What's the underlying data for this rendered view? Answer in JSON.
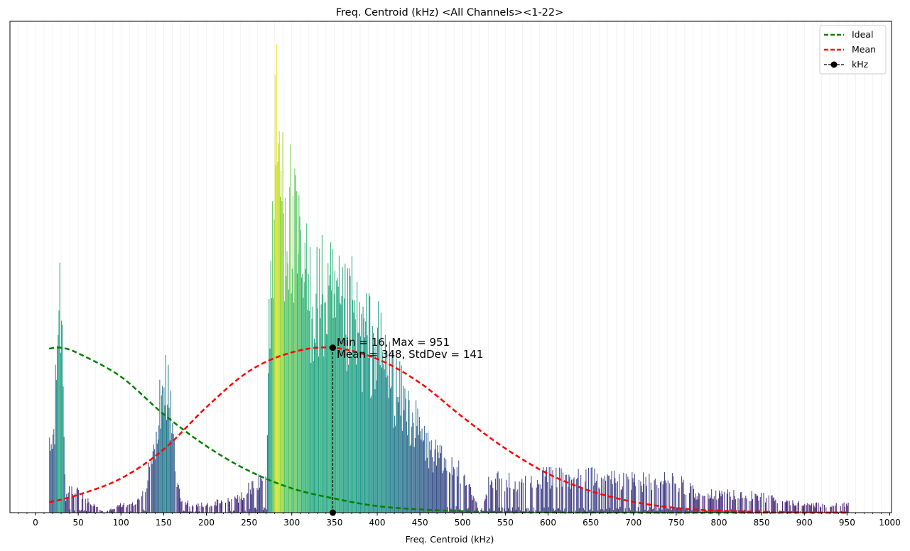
{
  "chart_data": {
    "type": "bar",
    "title": "Freq. Centroid (kHz) <All Channels><1-22>",
    "xlabel": "Freq. Centroid (kHz)",
    "ylabel": "",
    "xlim": [
      -30,
      1000
    ],
    "ylim": [
      0,
      1
    ],
    "x_ticks": [
      0,
      50,
      100,
      150,
      200,
      250,
      300,
      350,
      400,
      450,
      500,
      550,
      600,
      650,
      700,
      750,
      800,
      850,
      900,
      950,
      1000
    ],
    "x_tick_labels": [
      "0",
      "50",
      "100",
      "150",
      "200",
      "250",
      "300",
      "350",
      "400",
      "450",
      "500",
      "550",
      "600",
      "650",
      "700",
      "750",
      "800",
      "850",
      "900",
      "950",
      "1000"
    ],
    "minor_tick_step": 10,
    "grid": "vertical-minor",
    "y_axis_labels_shown": false,
    "colormap": "viridis",
    "histogram_envelope": {
      "x_khz": [
        16,
        22,
        26,
        30,
        35,
        40,
        50,
        60,
        80,
        100,
        110,
        120,
        130,
        140,
        145,
        150,
        155,
        160,
        165,
        170,
        180,
        200,
        220,
        240,
        260,
        270,
        272,
        275,
        280,
        283,
        285,
        290,
        295,
        300,
        310,
        320,
        330,
        340,
        350,
        360,
        370,
        380,
        390,
        400,
        410,
        420,
        430,
        440,
        450,
        460,
        470,
        480,
        490,
        500,
        510,
        520,
        530,
        560,
        600,
        650,
        700,
        750,
        780,
        800,
        850,
        900,
        951
      ],
      "count_fraction": [
        0.15,
        0.21,
        0.53,
        0.55,
        0.04,
        0.06,
        0.05,
        0.03,
        0.0,
        0.02,
        0.02,
        0.03,
        0.09,
        0.16,
        0.27,
        0.33,
        0.3,
        0.2,
        0.09,
        0.04,
        0.02,
        0.02,
        0.03,
        0.04,
        0.08,
        0.08,
        0.42,
        0.55,
        0.9,
        1.0,
        0.88,
        0.82,
        0.8,
        0.7,
        0.62,
        0.56,
        0.55,
        0.54,
        0.52,
        0.48,
        0.5,
        0.45,
        0.44,
        0.42,
        0.38,
        0.32,
        0.28,
        0.24,
        0.2,
        0.16,
        0.14,
        0.12,
        0.11,
        0.1,
        0.05,
        0.0,
        0.08,
        0.08,
        0.09,
        0.09,
        0.08,
        0.08,
        0.04,
        0.05,
        0.04,
        0.02,
        0.02
      ]
    },
    "series": [
      {
        "name": "Ideal",
        "type": "line",
        "style": "dashed",
        "color": "#008000",
        "x": [
          16,
          30,
          50,
          100,
          150,
          200,
          250,
          300,
          350,
          400,
          450,
          500,
          550,
          600,
          650,
          700,
          750,
          800,
          850,
          900,
          951
        ],
        "y": [
          0.35,
          0.352,
          0.34,
          0.29,
          0.21,
          0.142,
          0.089,
          0.052,
          0.03,
          0.014,
          0.007,
          0.003,
          0.001,
          0.0005,
          0.0002,
          0.0001,
          0.0,
          0.0,
          0.0,
          0.0,
          0.0
        ]
      },
      {
        "name": "Mean",
        "type": "line",
        "style": "dashed",
        "color": "#ff0000",
        "x": [
          16,
          50,
          100,
          150,
          200,
          250,
          300,
          348,
          400,
          450,
          500,
          550,
          600,
          650,
          700,
          750,
          800,
          850,
          900,
          951
        ],
        "y": [
          0.022,
          0.038,
          0.073,
          0.135,
          0.225,
          0.302,
          0.342,
          0.352,
          0.328,
          0.277,
          0.204,
          0.137,
          0.083,
          0.046,
          0.023,
          0.01,
          0.004,
          0.002,
          0.0005,
          0.0002
        ]
      },
      {
        "name": "kHz",
        "type": "marker-line",
        "style": "dashed",
        "color": "#000000",
        "x": [
          348,
          348
        ],
        "y": [
          0,
          0.352
        ]
      }
    ],
    "legend": {
      "position": "top-right",
      "entries": [
        "Ideal",
        "Mean",
        "kHz"
      ]
    },
    "annotation": {
      "line1": "Min = 16, Max = 951",
      "line2": "Mean = 348, StdDev = 141",
      "anchor_x": 348,
      "anchor_y": 0.352
    }
  }
}
